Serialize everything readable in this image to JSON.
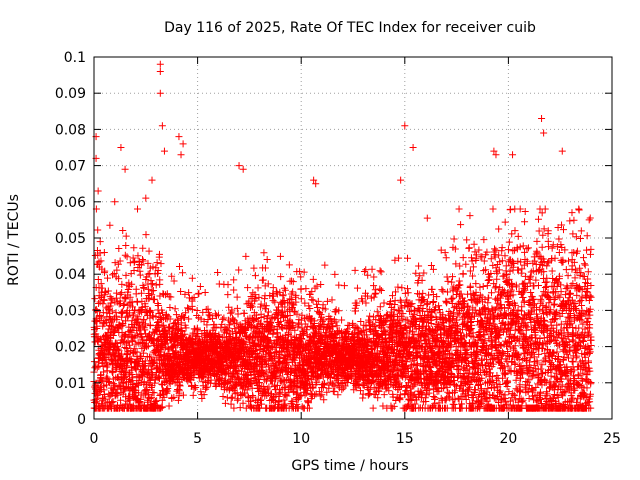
{
  "chart_data": {
    "type": "scatter",
    "title": "Day 116 of 2025, Rate Of TEC Index for receiver cuib",
    "xlabel": "GPS time / hours",
    "ylabel": "ROTI / TECUs",
    "xlim": [
      0,
      25
    ],
    "ylim": [
      0,
      0.1
    ],
    "xticks": [
      0,
      5,
      10,
      15,
      20,
      25
    ],
    "yticks": [
      0,
      0.01,
      0.02,
      0.03,
      0.04,
      0.05,
      0.06,
      0.07,
      0.08,
      0.09,
      0.1
    ],
    "xtick_labels": [
      "0",
      "5",
      "10",
      "15",
      "20",
      "25"
    ],
    "ytick_labels": [
      "0",
      "0.01",
      "0.02",
      "0.03",
      "0.04",
      "0.05",
      "0.06",
      "0.07",
      "0.08",
      "0.09",
      "0.1"
    ],
    "grid": true,
    "marker": "+",
    "marker_color": "#ff0000",
    "series": [
      {
        "name": "ROTI",
        "x": [
          0.1,
          0.1,
          0.2,
          0.3,
          0.5,
          1.0,
          1.3,
          1.5,
          2.1,
          2.5,
          2.8,
          3.2,
          3.2,
          3.2,
          3.3,
          3.4,
          4.1,
          4.2,
          4.3,
          7.0,
          7.2,
          10.6,
          10.7,
          14.8,
          15.0,
          15.4,
          19.3,
          19.4,
          20.2,
          21.6,
          21.7,
          22.6,
          23.9
        ],
        "y": [
          0.078,
          0.072,
          0.063,
          0.049,
          0.046,
          0.06,
          0.075,
          0.069,
          0.058,
          0.061,
          0.066,
          0.098,
          0.096,
          0.09,
          0.081,
          0.074,
          0.078,
          0.073,
          0.076,
          0.07,
          0.069,
          0.066,
          0.065,
          0.066,
          0.081,
          0.075,
          0.074,
          0.073,
          0.073,
          0.083,
          0.079,
          0.074,
          0.055
        ]
      }
    ]
  }
}
